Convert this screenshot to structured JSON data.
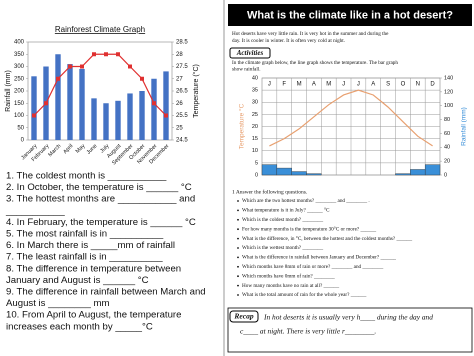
{
  "chart_data": [
    {
      "type": "combo",
      "title": "Rainforest Climate Graph",
      "y_label": "Rainfall (mm)",
      "y2_label": "Temperature (°C)",
      "categories": [
        "January",
        "February",
        "March",
        "April",
        "May",
        "June",
        "July",
        "August",
        "September",
        "October",
        "November",
        "December"
      ],
      "series": [
        {
          "type": "bar",
          "color": "#4472c4",
          "values": [
            260,
            300,
            350,
            310,
            290,
            170,
            150,
            160,
            190,
            200,
            250,
            280
          ]
        },
        {
          "type": "line",
          "color": "#e03030",
          "axis": "y2",
          "markers": true,
          "values": [
            25.5,
            26,
            27,
            27.5,
            27.5,
            28,
            28,
            28,
            27.5,
            27,
            26,
            25.5
          ]
        }
      ],
      "ylim": [
        0,
        400
      ],
      "yticks": [
        0,
        50,
        100,
        150,
        200,
        250,
        300,
        350,
        400
      ],
      "y2lim": [
        24.5,
        28.5
      ],
      "y2ticks": [
        24.5,
        25,
        25.5,
        26,
        26.5,
        27,
        27.5,
        28,
        28.5
      ],
      "grid": false
    },
    {
      "type": "combo",
      "y_label": "Temperature °C",
      "y2_label": "Rainfall (mm)",
      "categories": [
        "J",
        "F",
        "M",
        "A",
        "M",
        "J",
        "J",
        "A",
        "S",
        "O",
        "N",
        "D"
      ],
      "series": [
        {
          "type": "line",
          "color": "#e8a070",
          "markers": false,
          "values": [
            12,
            15,
            19,
            24,
            29,
            33,
            35,
            33,
            28,
            22,
            16,
            12
          ]
        },
        {
          "type": "bar",
          "color": "#3a8fd8",
          "axis": "y2",
          "values": [
            15,
            10,
            5,
            2,
            0,
            0,
            0,
            0,
            0,
            2,
            8,
            15
          ]
        }
      ],
      "ylim": [
        0,
        40
      ],
      "yticks": [
        0,
        5,
        10,
        15,
        20,
        25,
        30,
        35,
        40
      ],
      "y2lim": [
        0,
        140
      ],
      "y2ticks": [
        0,
        20,
        40,
        60,
        80,
        100,
        120,
        140
      ],
      "grid": true
    }
  ],
  "left": {
    "questions": [
      [
        "1. The coldest month is ___________"
      ],
      [
        "2. In October, the temperature is ______ °C"
      ],
      [
        "3. The hottest months are ___________ and",
        "___________"
      ],
      [
        "4. In February, the temperature is ______ °C"
      ],
      [
        "5. The most rainfall is in __________"
      ],
      [
        "6. In March there is _____mm of rainfall"
      ],
      [
        "7. The least rainfall is in __________"
      ],
      [
        "8. The difference in temperature between",
        "    January and August is ______ °C"
      ],
      [
        "9. The difference in rainfall between March and",
        "    August is ________ mm"
      ],
      [
        "10.     From April to August, the temperature",
        "    increases each month by _____°C"
      ]
    ]
  },
  "right": {
    "title": "What is the climate like in a hot desert?",
    "intro": [
      "Hot deserts have very little rain. It is very hot in the summer and during the",
      "day. It is cooler in winter. It is often very cold at night."
    ],
    "activities": "Activities",
    "instructions": [
      "In the climate graph below, the line graph shows the temperature. The bar graph",
      "show rainfall."
    ],
    "question_heading": "1  Answer the following questions.",
    "questions": [
      "Which are the two hottest months? ________ and ________ .",
      "What temperature is it in July? ______ °C",
      "Which is the coldest month? ________",
      "For how many months is the temperature 30°C or more? ______",
      "What is the difference, in °C, between the hottest and the coldest months? ______",
      "Which is the wettest month? ________",
      "What is the difference in rainfall between January and December? ______",
      "Which months have 8mm of rain or more? ________ and ________",
      "Which months have 0mm of rain? ________",
      "How many months have no rain at all? ______",
      "What is the total amount of rain for the whole year? ______"
    ],
    "recap": "Recap",
    "recap_text": [
      "In hot deserts it is usually very h____ during the day and",
      "c____ at night. There is very little r________."
    ]
  }
}
